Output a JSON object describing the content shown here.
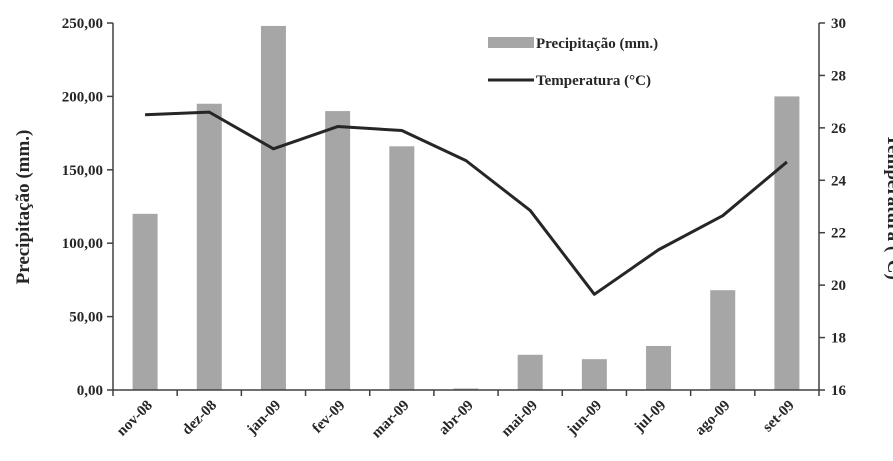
{
  "chart_data": {
    "type": "bar+line",
    "categories": [
      "nov-08",
      "dez-08",
      "jan-09",
      "fev-09",
      "mar-09",
      "abr-09",
      "mai-09",
      "jun-09",
      "jul-09",
      "ago-09",
      "set-09"
    ],
    "series": [
      {
        "name": "Precipitação (mm.)",
        "type": "bar",
        "axis": "left",
        "color": "#a6a6a6",
        "values": [
          120,
          195,
          248,
          190,
          166,
          1,
          24,
          21,
          30,
          68,
          200
        ]
      },
      {
        "name": "Temperatura (°C)",
        "type": "line",
        "axis": "right",
        "color": "#262626",
        "values": [
          26.5,
          26.6,
          25.2,
          26.05,
          25.9,
          24.75,
          22.85,
          19.65,
          21.35,
          22.65,
          24.7
        ]
      }
    ],
    "ylabel": "Precipitação (mm.)",
    "y2label": "Temperatura (°C)",
    "ylim": [
      0,
      250
    ],
    "y2lim": [
      16,
      30
    ],
    "yticks": [
      "0,00",
      "50,00",
      "100,00",
      "150,00",
      "200,00",
      "250,00"
    ],
    "y2ticks": [
      "16",
      "18",
      "20",
      "22",
      "24",
      "26",
      "28",
      "30"
    ],
    "legend_position": "top-right",
    "grid": false
  }
}
